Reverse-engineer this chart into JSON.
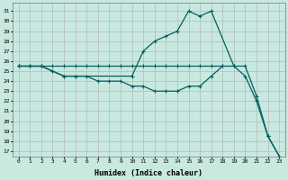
{
  "xlabel": "Humidex (Indice chaleur)",
  "background_color": "#c8e8e0",
  "grid_color": "#b0b0b0",
  "line_color": "#006060",
  "xlim": [
    -0.5,
    23.5
  ],
  "ylim": [
    16.5,
    31.8
  ],
  "yticks": [
    17,
    18,
    19,
    20,
    21,
    22,
    23,
    24,
    25,
    26,
    27,
    28,
    29,
    30,
    31
  ],
  "xticks": [
    0,
    1,
    2,
    3,
    4,
    5,
    6,
    7,
    8,
    9,
    10,
    11,
    12,
    13,
    14,
    15,
    16,
    17,
    18,
    19,
    20,
    21,
    22,
    23
  ],
  "line_flat_x": [
    0,
    1,
    2,
    3,
    4,
    5,
    6,
    7,
    8,
    9,
    10,
    11,
    12,
    13,
    14,
    15,
    16,
    17,
    18
  ],
  "line_flat_y": [
    25.5,
    25.5,
    25.5,
    25.5,
    25.5,
    25.5,
    25.5,
    25.5,
    25.5,
    25.5,
    25.5,
    25.5,
    25.5,
    25.5,
    25.5,
    25.5,
    25.5,
    25.5,
    25.5
  ],
  "line_peak_x": [
    0,
    1,
    2,
    3,
    4,
    5,
    10,
    11,
    12,
    13,
    14,
    15,
    16,
    17,
    19,
    20,
    21,
    22,
    23
  ],
  "line_peak_y": [
    25.5,
    25.5,
    25.5,
    25.0,
    24.5,
    24.5,
    24.5,
    27.0,
    28.0,
    28.5,
    29.0,
    31.0,
    30.5,
    31.0,
    25.5,
    25.5,
    22.5,
    18.5,
    16.5
  ],
  "line_diag_x": [
    0,
    1,
    2,
    3,
    4,
    5,
    6,
    7,
    8,
    9,
    10,
    11,
    12,
    13,
    14,
    15,
    16,
    17,
    18,
    19,
    20,
    21,
    22,
    23
  ],
  "line_diag_y": [
    25.5,
    25.5,
    25.5,
    25.0,
    24.5,
    24.5,
    24.5,
    24.0,
    24.0,
    24.0,
    23.5,
    23.5,
    23.0,
    23.0,
    23.0,
    23.5,
    23.5,
    24.5,
    25.5,
    25.5,
    24.5,
    22.0,
    18.5,
    16.5
  ],
  "xlabel_fontsize": 6,
  "tick_fontsize": 4.5
}
